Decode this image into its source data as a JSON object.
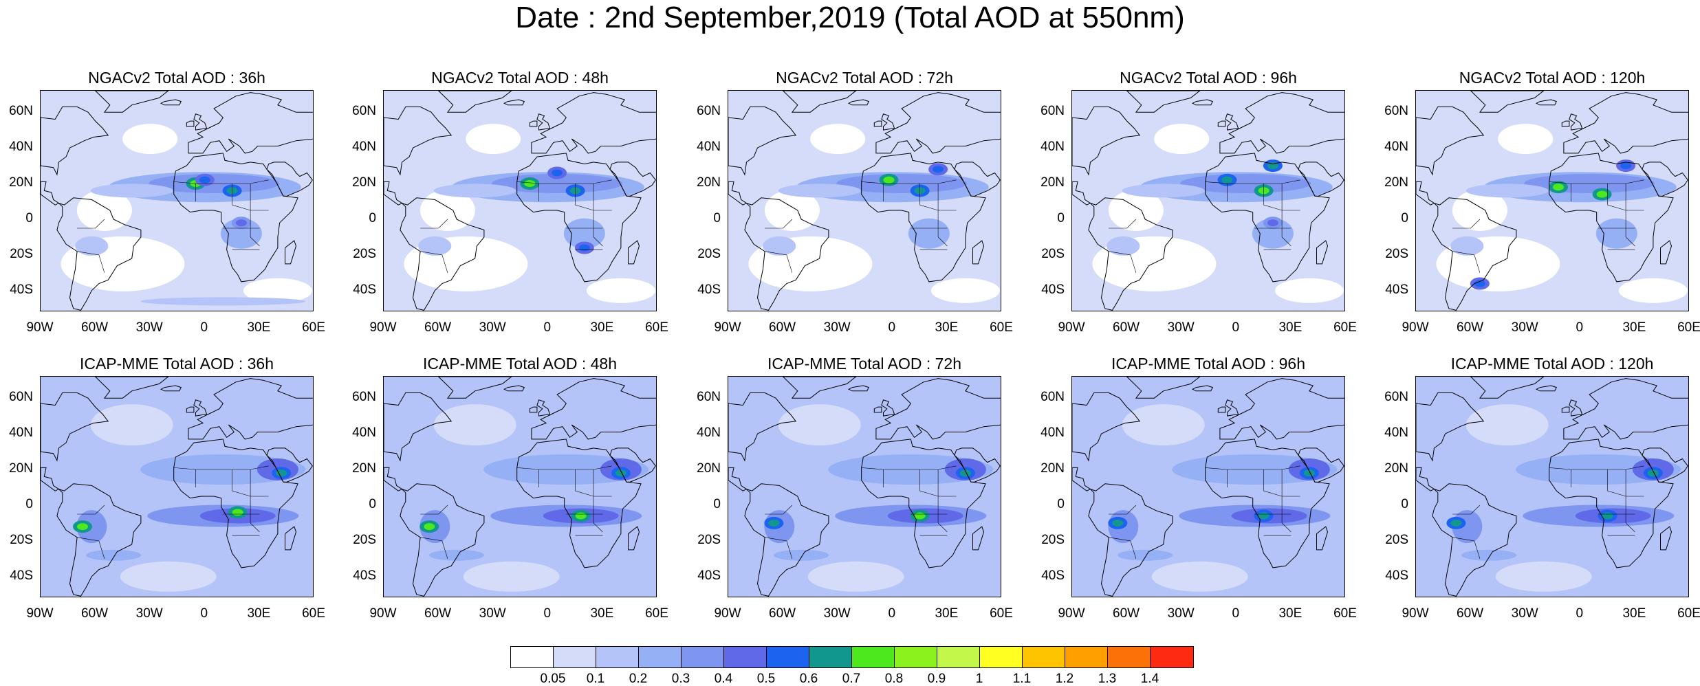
{
  "title": "Date : 2nd September,2019 (Total AOD at 550nm)",
  "panels": [
    {
      "title": "NGACv2 Total AOD : 36h",
      "model": "ngac",
      "hotspots": [
        {
          "lon": -5,
          "lat": 20,
          "level": 8
        },
        {
          "lon": 15,
          "lat": 16,
          "level": 7
        },
        {
          "lon": 20,
          "lat": -2,
          "level": 5
        },
        {
          "lon": 0,
          "lat": 22,
          "level": 6
        }
      ]
    },
    {
      "title": "NGACv2 Total AOD : 48h",
      "model": "ngac",
      "hotspots": [
        {
          "lon": -10,
          "lat": 20,
          "level": 8
        },
        {
          "lon": 15,
          "lat": 16,
          "level": 7
        },
        {
          "lon": 20,
          "lat": -16,
          "level": 6
        },
        {
          "lon": 5,
          "lat": 26,
          "level": 6
        }
      ]
    },
    {
      "title": "NGACv2 Total AOD : 72h",
      "model": "ngac",
      "hotspots": [
        {
          "lon": -2,
          "lat": 22,
          "level": 8
        },
        {
          "lon": 15,
          "lat": 16,
          "level": 7
        },
        {
          "lon": 25,
          "lat": 28,
          "level": 6
        }
      ]
    },
    {
      "title": "NGACv2 Total AOD : 96h",
      "model": "ngac",
      "hotspots": [
        {
          "lon": -5,
          "lat": 22,
          "level": 7
        },
        {
          "lon": 15,
          "lat": 16,
          "level": 8
        },
        {
          "lon": 20,
          "lat": 30,
          "level": 7
        },
        {
          "lon": 20,
          "lat": -2,
          "level": 5
        }
      ]
    },
    {
      "title": "NGACv2 Total AOD : 120h",
      "model": "ngac",
      "hotspots": [
        {
          "lon": -12,
          "lat": 18,
          "level": 8
        },
        {
          "lon": 12,
          "lat": 14,
          "level": 8
        },
        {
          "lon": 25,
          "lat": 30,
          "level": 6
        },
        {
          "lon": -55,
          "lat": -36,
          "level": 6
        }
      ]
    },
    {
      "title": "ICAP-MME Total AOD : 36h",
      "model": "icap",
      "hotspots": [
        {
          "lon": 18,
          "lat": -4,
          "level": 8
        },
        {
          "lon": -67,
          "lat": -12,
          "level": 8
        },
        {
          "lon": 42,
          "lat": 18,
          "level": 7
        }
      ]
    },
    {
      "title": "ICAP-MME Total AOD : 48h",
      "model": "icap",
      "hotspots": [
        {
          "lon": 18,
          "lat": -6,
          "level": 8
        },
        {
          "lon": -65,
          "lat": -12,
          "level": 8
        },
        {
          "lon": 40,
          "lat": 18,
          "level": 7
        }
      ]
    },
    {
      "title": "ICAP-MME Total AOD : 72h",
      "model": "icap",
      "hotspots": [
        {
          "lon": 15,
          "lat": -6,
          "level": 8
        },
        {
          "lon": -65,
          "lat": -10,
          "level": 7
        },
        {
          "lon": 40,
          "lat": 18,
          "level": 7
        }
      ]
    },
    {
      "title": "ICAP-MME Total AOD : 96h",
      "model": "icap",
      "hotspots": [
        {
          "lon": 15,
          "lat": -6,
          "level": 7
        },
        {
          "lon": -65,
          "lat": -10,
          "level": 7
        },
        {
          "lon": 40,
          "lat": 18,
          "level": 7
        }
      ]
    },
    {
      "title": "ICAP-MME Total AOD : 120h",
      "model": "icap",
      "hotspots": [
        {
          "lon": 15,
          "lat": -6,
          "level": 7
        },
        {
          "lon": -68,
          "lat": -10,
          "level": 7
        },
        {
          "lon": 40,
          "lat": 18,
          "level": 7
        }
      ]
    }
  ],
  "axes": {
    "lat_labels": [
      "60N",
      "40N",
      "20N",
      "0",
      "20S",
      "40S"
    ],
    "lon_labels": [
      "90W",
      "60W",
      "30W",
      "0",
      "30E",
      "60E"
    ]
  },
  "colorbar": {
    "colors": [
      "#ffffff",
      "#d4dcfa",
      "#b4c4f8",
      "#95b0f4",
      "#7e96ef",
      "#606ae8",
      "#1c64f0",
      "#12978f",
      "#4ee81e",
      "#8cf21e",
      "#c3f74a",
      "#ffff21",
      "#ffc400",
      "#ffa000",
      "#fc7206",
      "#ff2a12"
    ],
    "labels": [
      "0.05",
      "0.1",
      "0.2",
      "0.3",
      "0.4",
      "0.5",
      "0.6",
      "0.7",
      "0.8",
      "0.9",
      "1",
      "1.1",
      "1.2",
      "1.3",
      "1.4"
    ]
  }
}
